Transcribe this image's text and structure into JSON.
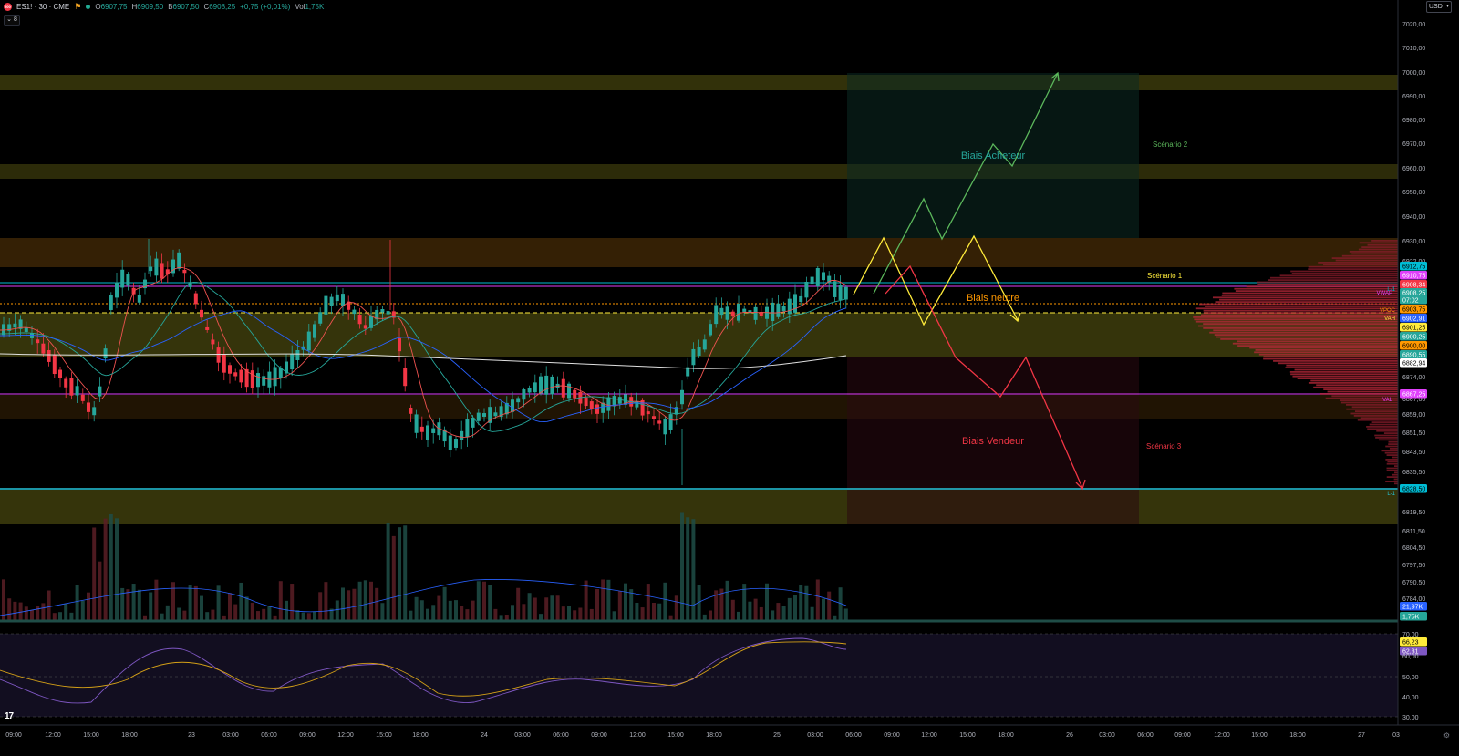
{
  "header": {
    "logo_text": "500",
    "symbol": "ES1! · 30 · CME",
    "o_label": "O",
    "o_value": "6907,75",
    "h_label": "H",
    "h_value": "6909,50",
    "b_label": "B",
    "b_value": "6907,50",
    "c_label": "C",
    "c_value": "6908,25",
    "change": "+0,75 (+0,01%)",
    "vol_label": "Vol",
    "vol_value": "1,75K"
  },
  "indicator_toggle": "⌄ 8",
  "currency": "USD",
  "colors": {
    "bull": "#26a69a",
    "bear": "#f23645",
    "green_scenario": "#5cb85c",
    "yellow_scenario": "#ffeb3b",
    "red_scenario": "#f23645",
    "zone": "#3b3a0c",
    "orange_zone": "#3a2406"
  },
  "price_axis": {
    "labels": [
      "7020,00",
      "7010,00",
      "7000,00",
      "6990,00",
      "6980,00",
      "6970,00",
      "6960,00",
      "6950,00",
      "6940,00",
      "6930,00",
      "6922,00",
      "6874,00",
      "6867,00",
      "6859,00",
      "6851,50",
      "6843,50",
      "6835,50",
      "6819,50",
      "6811,50",
      "6804,50",
      "6797,50",
      "6790,50",
      "6784,00"
    ],
    "badges": [
      {
        "text": "6912,75",
        "bg": "#00bcd4",
        "fg": "#000"
      },
      {
        "text": "6910,75",
        "bg": "#e040fb",
        "fg": "#fff"
      },
      {
        "text": "6908,34",
        "bg": "#f23645",
        "fg": "#fff"
      },
      {
        "text": "6908,25",
        "bg": "#26a69a",
        "fg": "#fff"
      },
      {
        "text": "07:02",
        "bg": "#26a69a",
        "fg": "#fff"
      },
      {
        "text": "6903,75",
        "bg": "#ff9800",
        "fg": "#000"
      },
      {
        "text": "6902,91",
        "bg": "#2962ff",
        "fg": "#fff"
      },
      {
        "text": "6901,25",
        "bg": "#ffeb3b",
        "fg": "#000"
      },
      {
        "text": "6900,25",
        "bg": "#26a69a",
        "fg": "#fff"
      },
      {
        "text": "6900,00",
        "bg": "#ff9800",
        "fg": "#000"
      },
      {
        "text": "6890,55",
        "bg": "#26a69a",
        "fg": "#fff"
      },
      {
        "text": "6882,94",
        "bg": "#ffffff",
        "fg": "#000"
      },
      {
        "text": "6867,25",
        "bg": "#e040fb",
        "fg": "#fff"
      },
      {
        "text": "6828,50",
        "bg": "#00bcd4",
        "fg": "#000"
      },
      {
        "text": "21,97K",
        "bg": "#2962ff",
        "fg": "#fff"
      },
      {
        "text": "1,75K",
        "bg": "#26a69a",
        "fg": "#fff"
      },
      {
        "text": "66,23",
        "bg": "#ffeb3b",
        "fg": "#000"
      },
      {
        "text": "62,31",
        "bg": "#7e57c2",
        "fg": "#fff"
      }
    ],
    "rsi_labels": [
      "70,00",
      "60,00",
      "50,00",
      "40,00",
      "30,00"
    ]
  },
  "time_axis": [
    "09:00",
    "12:00",
    "15:00",
    "18:00",
    "23",
    "03:00",
    "06:00",
    "09:00",
    "12:00",
    "15:00",
    "18:00",
    "24",
    "03:00",
    "06:00",
    "09:00",
    "12:00",
    "15:00",
    "18:00",
    "25",
    "03:00",
    "06:00",
    "09:00",
    "12:00",
    "15:00",
    "18:00",
    "26",
    "03:00",
    "06:00",
    "09:00",
    "12:00",
    "15:00",
    "18:00",
    "27",
    "03"
  ],
  "annotations": {
    "biais_acheteur": "Biais Acheteur",
    "biais_neutre": "Biais neutre",
    "biais_vendeur": "Biais Vendeur",
    "scenario_1": "Scénario 1",
    "scenario_2": "Scénario 2",
    "scenario_3": "Scénario 3"
  },
  "line_tags": {
    "l1_top": "L-1",
    "vwap": "VWAP",
    "vpoc": "VPOC",
    "vah": "VAH",
    "val": "VAL",
    "l1_bottom": "L-1"
  },
  "branding": {
    "tv_logo": "17"
  }
}
